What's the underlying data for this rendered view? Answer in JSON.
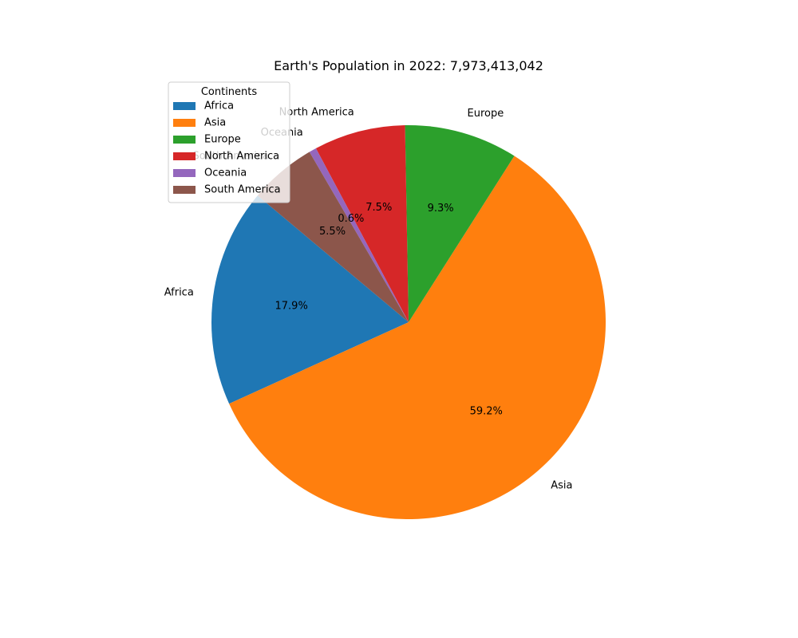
{
  "chart_data": {
    "type": "pie",
    "title": "Earth's Population in 2022: 7,973,413,042",
    "start_angle_deg": 140,
    "direction": "counterclockwise",
    "autopct_format": "%1.1f%%",
    "slices": [
      {
        "label": "Africa",
        "value": 17.9,
        "color": "#1f77b4"
      },
      {
        "label": "Asia",
        "value": 59.2,
        "color": "#ff7f0e"
      },
      {
        "label": "Europe",
        "value": 9.3,
        "color": "#2ca02c"
      },
      {
        "label": "North America",
        "value": 7.5,
        "color": "#d62728"
      },
      {
        "label": "Oceania",
        "value": 0.6,
        "color": "#9467bd"
      },
      {
        "label": "South America",
        "value": 5.5,
        "color": "#8c564b"
      }
    ],
    "legend": {
      "title": "Continents",
      "placement": "upper-left",
      "entries": [
        "Africa",
        "Asia",
        "Europe",
        "North America",
        "Oceania",
        "South America"
      ]
    }
  }
}
